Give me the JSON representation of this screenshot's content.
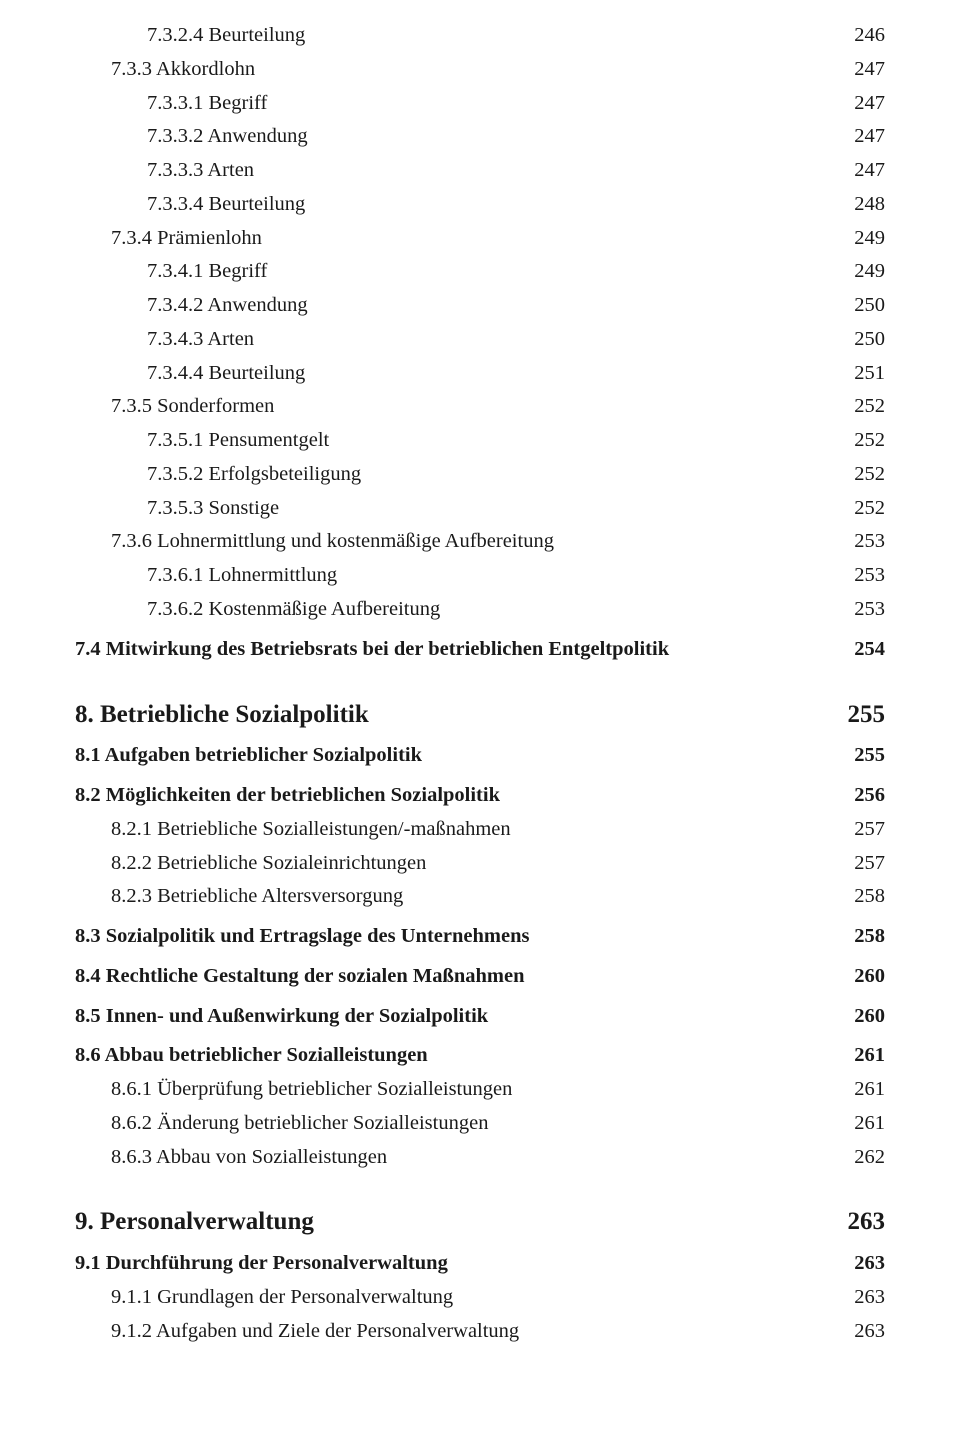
{
  "entries": [
    {
      "level": 3,
      "label": "7.3.2.4 Beurteilung",
      "page": "246"
    },
    {
      "level": 2,
      "label": "7.3.3 Akkordlohn",
      "page": "247"
    },
    {
      "level": 3,
      "label": "7.3.3.1 Begriff",
      "page": "247"
    },
    {
      "level": 3,
      "label": "7.3.3.2 Anwendung",
      "page": "247"
    },
    {
      "level": 3,
      "label": "7.3.3.3 Arten",
      "page": "247"
    },
    {
      "level": 3,
      "label": "7.3.3.4 Beurteilung",
      "page": "248"
    },
    {
      "level": 2,
      "label": "7.3.4 Prämienlohn",
      "page": "249"
    },
    {
      "level": 3,
      "label": "7.3.4.1 Begriff",
      "page": "249"
    },
    {
      "level": 3,
      "label": "7.3.4.2 Anwendung",
      "page": "250"
    },
    {
      "level": 3,
      "label": "7.3.4.3 Arten",
      "page": "250"
    },
    {
      "level": 3,
      "label": "7.3.4.4 Beurteilung",
      "page": "251"
    },
    {
      "level": 2,
      "label": "7.3.5 Sonderformen",
      "page": "252"
    },
    {
      "level": 3,
      "label": "7.3.5.1 Pensumentgelt",
      "page": "252"
    },
    {
      "level": 3,
      "label": "7.3.5.2 Erfolgsbeteiligung",
      "page": "252"
    },
    {
      "level": 3,
      "label": "7.3.5.3 Sonstige",
      "page": "252"
    },
    {
      "level": 2,
      "label": "7.3.6 Lohnermittlung und kostenmäßige Aufbereitung",
      "page": "253"
    },
    {
      "level": 3,
      "label": "7.3.6.1 Lohnermittlung",
      "page": "253"
    },
    {
      "level": 3,
      "label": "7.3.6.2 Kostenmäßige Aufbereitung",
      "page": "253"
    },
    {
      "level": 1,
      "label": "7.4 Mitwirkung des Betriebsrats bei der betrieblichen Entgeltpolitik",
      "page": "254"
    },
    {
      "level": 0,
      "label": "8. Betriebliche Sozialpolitik",
      "page": "255"
    },
    {
      "level": 1,
      "label": "8.1 Aufgaben betrieblicher Sozialpolitik",
      "page": "255",
      "firstAfterChapter": true
    },
    {
      "level": 1,
      "label": "8.2 Möglichkeiten der betrieblichen Sozialpolitik",
      "page": "256"
    },
    {
      "level": 2,
      "label": "8.2.1 Betriebliche Sozialleistungen/-maßnahmen",
      "page": "257"
    },
    {
      "level": 2,
      "label": "8.2.2 Betriebliche Sozialeinrichtungen",
      "page": "257"
    },
    {
      "level": 2,
      "label": "8.2.3 Betriebliche Altersversorgung",
      "page": "258"
    },
    {
      "level": 1,
      "label": "8.3 Sozialpolitik und Ertragslage des Unternehmens",
      "page": "258"
    },
    {
      "level": 1,
      "label": "8.4 Rechtliche Gestaltung der sozialen Maßnahmen",
      "page": "260"
    },
    {
      "level": 1,
      "label": "8.5 Innen- und Außenwirkung der Sozialpolitik",
      "page": "260"
    },
    {
      "level": 1,
      "label": "8.6 Abbau betrieblicher Sozialleistungen",
      "page": "261"
    },
    {
      "level": 2,
      "label": "8.6.1 Überprüfung betrieblicher Sozialleistungen",
      "page": "261"
    },
    {
      "level": 2,
      "label": "8.6.2 Änderung betrieblicher Sozialleistungen",
      "page": "261"
    },
    {
      "level": 2,
      "label": "8.6.3 Abbau von Sozialleistungen",
      "page": "262"
    },
    {
      "level": 0,
      "label": "9. Personalverwaltung",
      "page": "263"
    },
    {
      "level": 1,
      "label": "9.1 Durchführung der Personalverwaltung",
      "page": "263",
      "firstAfterChapter": true
    },
    {
      "level": 2,
      "label": "9.1.1 Grundlagen der Personalverwaltung",
      "page": "263"
    },
    {
      "level": 2,
      "label": "9.1.2 Aufgaben und Ziele der Personalverwaltung",
      "page": "263"
    }
  ]
}
